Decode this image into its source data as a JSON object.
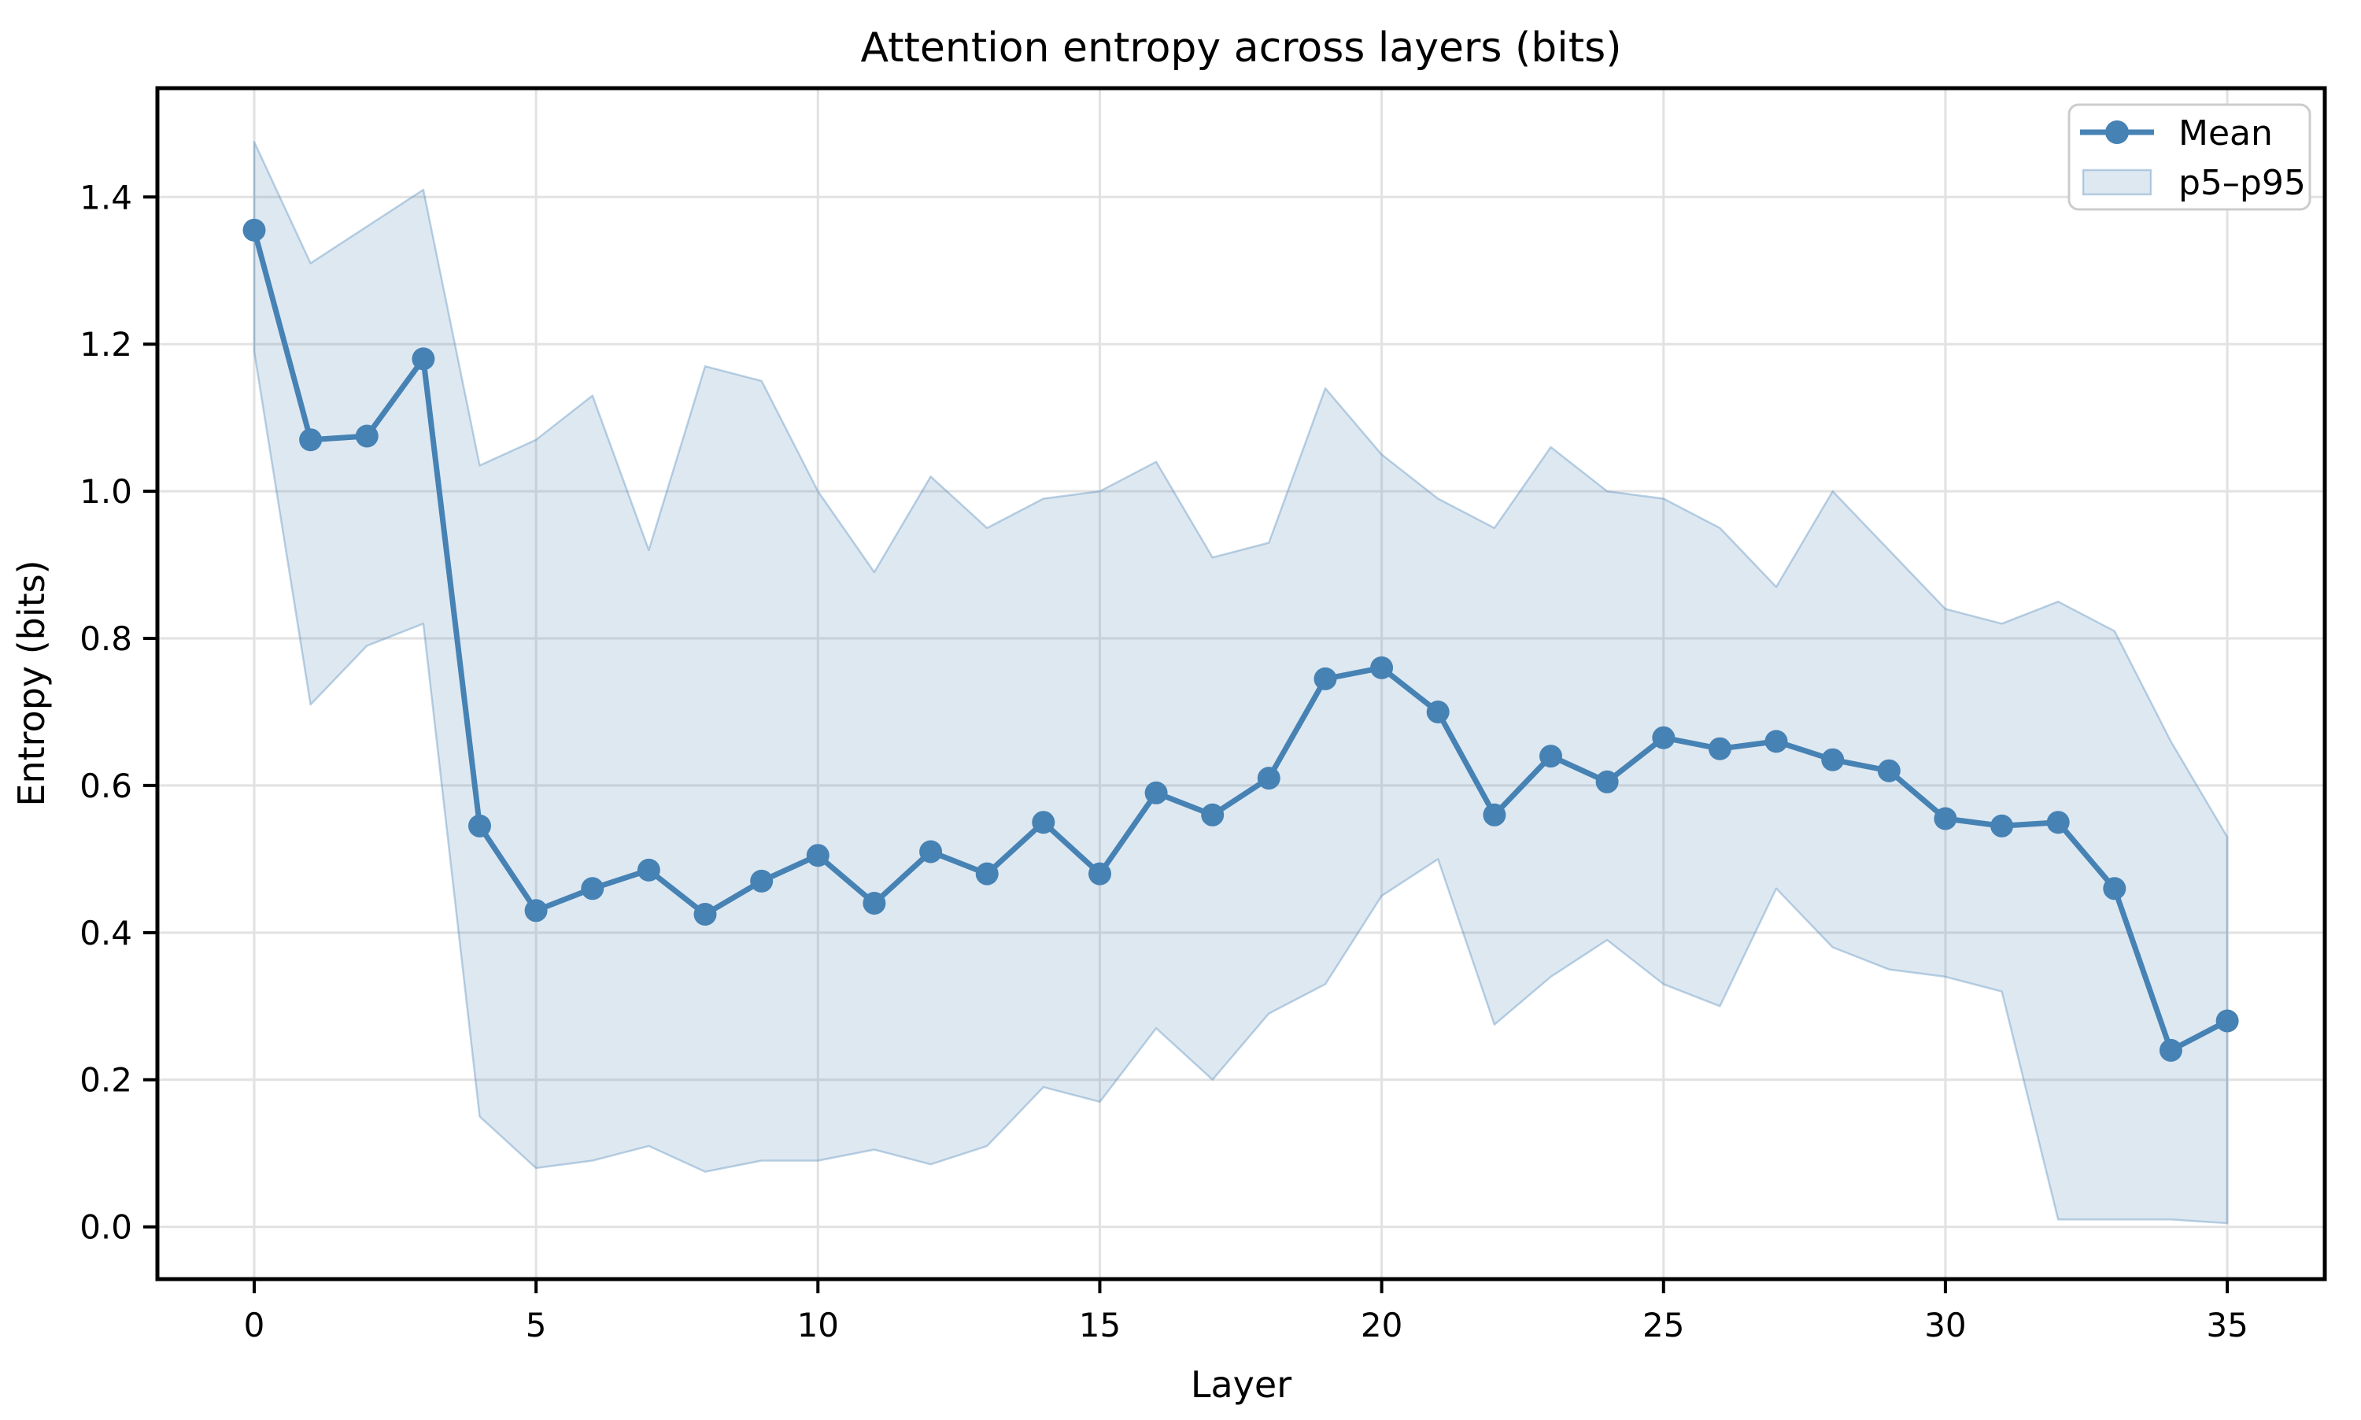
{
  "chart_data": {
    "type": "line",
    "title": "Attention entropy across layers (bits)",
    "xlabel": "Layer",
    "ylabel": "Entropy (bits)",
    "grid": true,
    "legend_position": "upper right",
    "xlim": [
      -1.717,
      36.73
    ],
    "ylim": [
      -0.071,
      1.548
    ],
    "x": [
      0,
      1,
      2,
      3,
      4,
      5,
      6,
      7,
      8,
      9,
      10,
      11,
      12,
      13,
      14,
      15,
      16,
      17,
      18,
      19,
      20,
      21,
      22,
      23,
      24,
      25,
      26,
      27,
      28,
      29,
      30,
      31,
      32,
      33,
      34,
      35
    ],
    "series": [
      {
        "name": "Mean",
        "type": "line-with-markers",
        "values": [
          1.355,
          1.07,
          1.075,
          1.18,
          0.545,
          0.43,
          0.46,
          0.485,
          0.425,
          0.47,
          0.505,
          0.44,
          0.51,
          0.48,
          0.55,
          0.48,
          0.59,
          0.56,
          0.61,
          0.745,
          0.76,
          0.7,
          0.56,
          0.64,
          0.605,
          0.665,
          0.65,
          0.66,
          0.635,
          0.62,
          0.555,
          0.545,
          0.55,
          0.46,
          0.24,
          0.28
        ]
      },
      {
        "name": "p95",
        "type": "band-upper",
        "values": [
          1.475,
          1.31,
          1.36,
          1.41,
          1.035,
          1.07,
          1.13,
          0.92,
          1.17,
          1.15,
          1.0,
          0.89,
          1.02,
          0.95,
          0.99,
          1.0,
          1.04,
          0.91,
          0.93,
          1.14,
          1.05,
          0.99,
          0.95,
          1.06,
          1.0,
          0.99,
          0.95,
          0.87,
          1.0,
          0.92,
          0.84,
          0.82,
          0.85,
          0.81,
          0.66,
          0.53
        ]
      },
      {
        "name": "p5",
        "type": "band-lower",
        "values": [
          1.19,
          0.71,
          0.79,
          0.82,
          0.15,
          0.08,
          0.09,
          0.11,
          0.075,
          0.09,
          0.09,
          0.105,
          0.085,
          0.11,
          0.19,
          0.17,
          0.27,
          0.2,
          0.29,
          0.33,
          0.45,
          0.5,
          0.275,
          0.34,
          0.39,
          0.33,
          0.3,
          0.46,
          0.38,
          0.35,
          0.34,
          0.32,
          0.01,
          0.01,
          0.01,
          0.005
        ]
      }
    ],
    "legend_entries": [
      {
        "label": "Mean",
        "swatch": "line-marker"
      },
      {
        "label": "p5–p95",
        "swatch": "band"
      }
    ],
    "x_ticks": [
      {
        "value": 0,
        "label": "0"
      },
      {
        "value": 5,
        "label": "5"
      },
      {
        "value": 10,
        "label": "10"
      },
      {
        "value": 15,
        "label": "15"
      },
      {
        "value": 20,
        "label": "20"
      },
      {
        "value": 25,
        "label": "25"
      },
      {
        "value": 30,
        "label": "30"
      },
      {
        "value": 35,
        "label": "35"
      }
    ],
    "y_ticks": [
      {
        "value": 0.0,
        "label": "0.0"
      },
      {
        "value": 0.2,
        "label": "0.2"
      },
      {
        "value": 0.4,
        "label": "0.4"
      },
      {
        "value": 0.6,
        "label": "0.6"
      },
      {
        "value": 0.8,
        "label": "0.8"
      },
      {
        "value": 1.0,
        "label": "1.0"
      },
      {
        "value": 1.2,
        "label": "1.2"
      },
      {
        "value": 1.4,
        "label": "1.4"
      }
    ],
    "colors": {
      "line": "#4682b4",
      "marker": "#4682b4",
      "band_fill": "rgba(70,130,180,0.18)",
      "band_edge": "rgba(70,130,180,0.35)",
      "grid": "#e2e2e2",
      "spine": "#000000",
      "text": "#000000",
      "legend_border": "#cccccc",
      "background": "#ffffff"
    }
  }
}
